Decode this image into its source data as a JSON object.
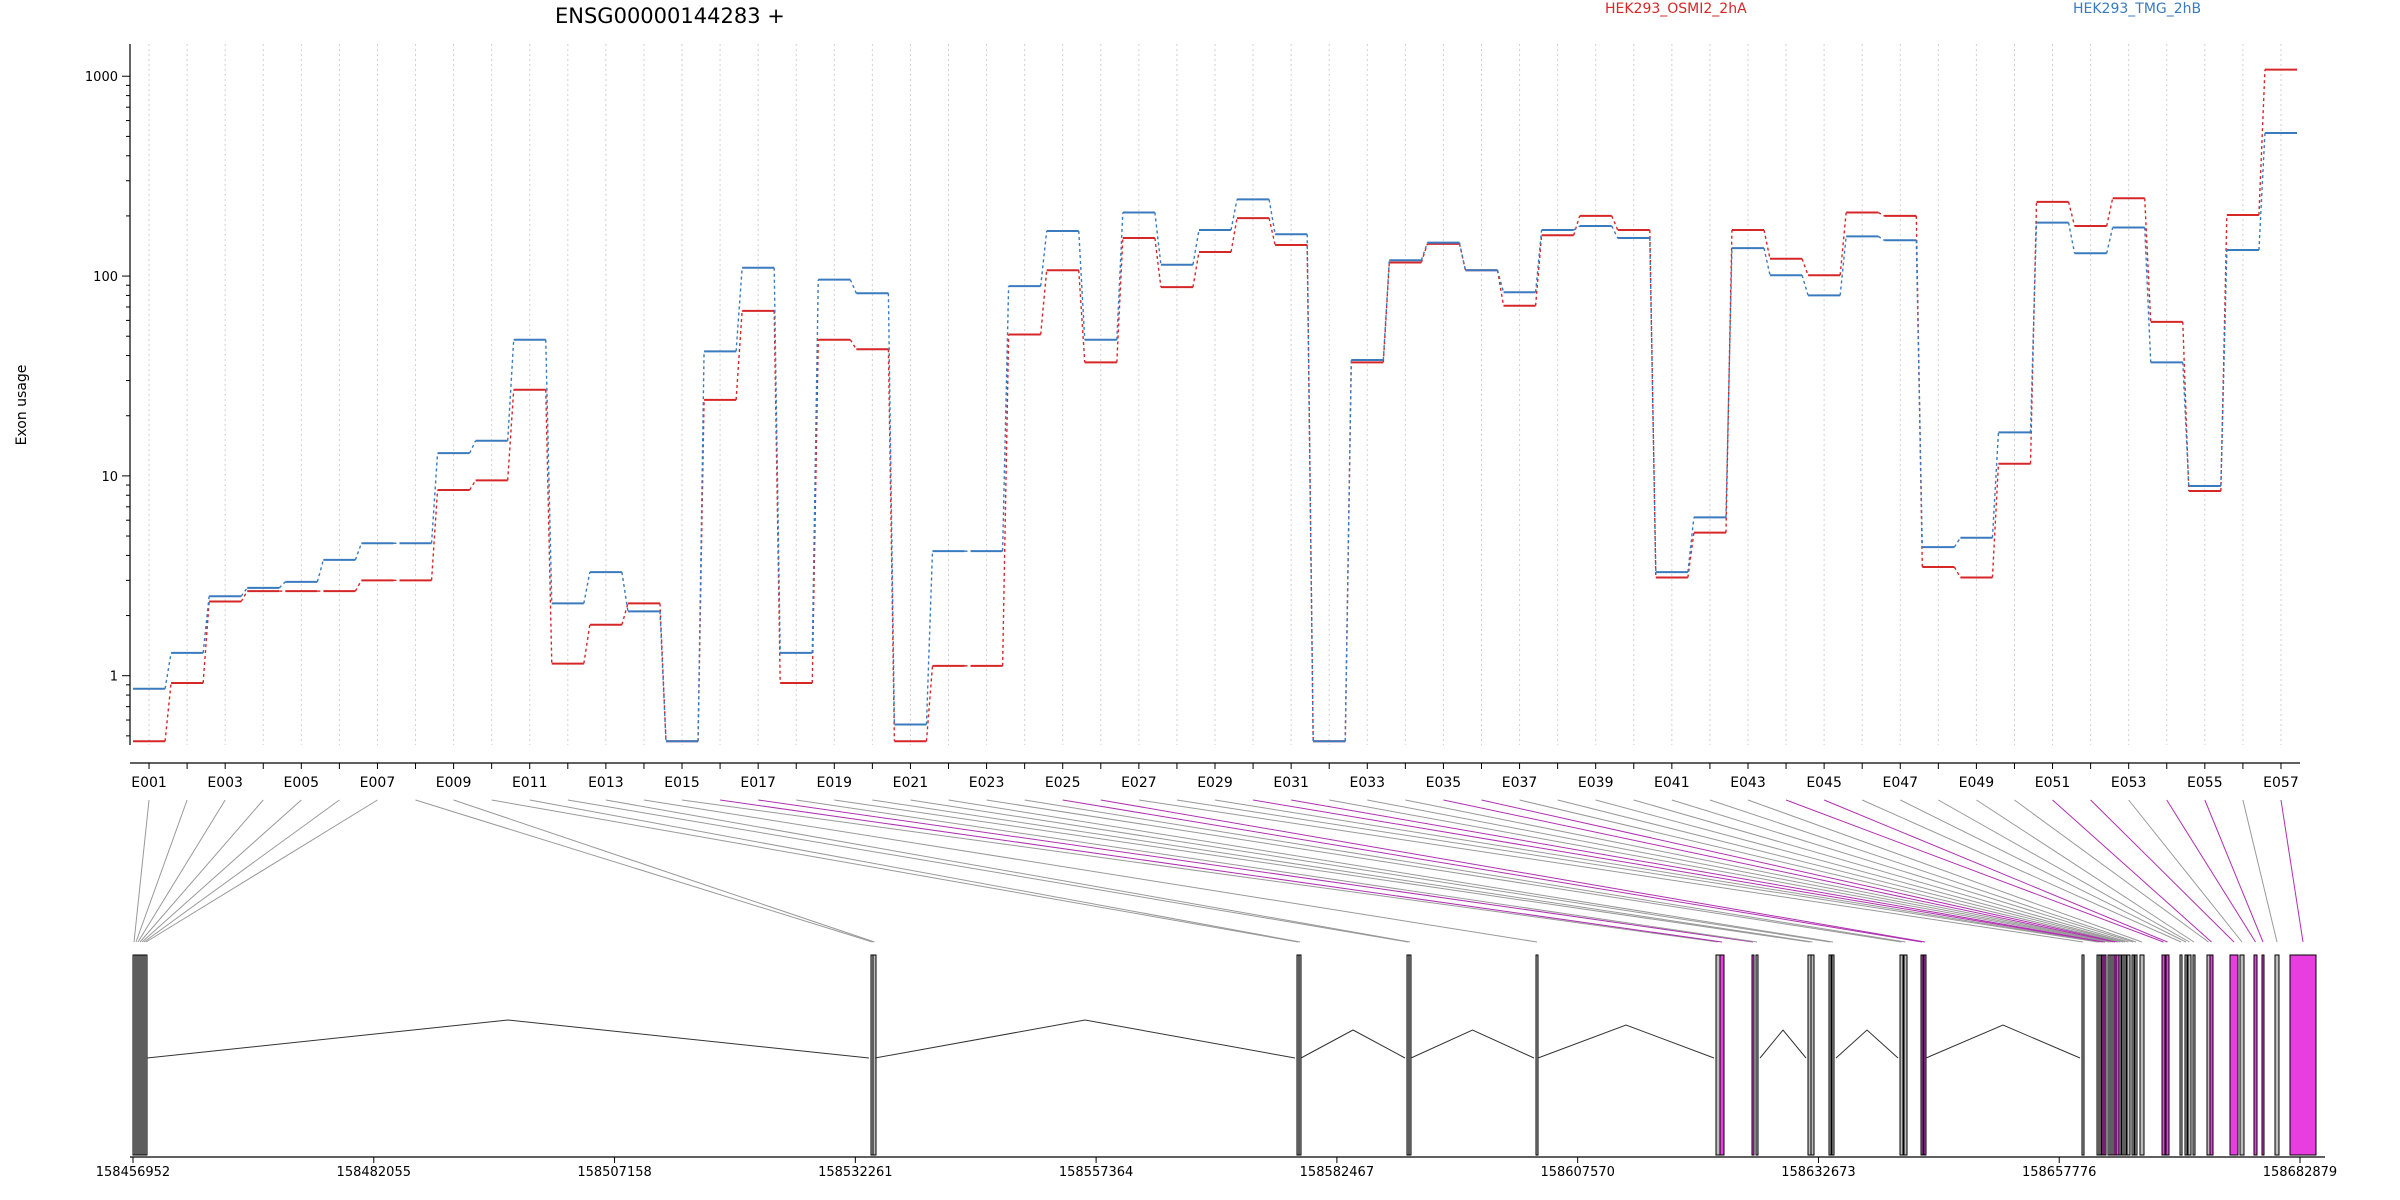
{
  "chart_data": {
    "type": "line",
    "title": "ENSG00000144283 +",
    "ylabel": "Exon usage",
    "xlabel": "",
    "y_scale": "log",
    "ylim": [
      0.45,
      1450
    ],
    "yticks": [
      1,
      10,
      100,
      1000
    ],
    "ytick_labels": [
      "1",
      "10",
      "100",
      "1000"
    ],
    "grid": "vertical-dotted",
    "legend_placement": "top-right",
    "categories": [
      "E001",
      "E002",
      "E003",
      "E004",
      "E005",
      "E006",
      "E007",
      "E008",
      "E009",
      "E010",
      "E011",
      "E012",
      "E013",
      "E014",
      "E015",
      "E016",
      "E017",
      "E018",
      "E019",
      "E020",
      "E021",
      "E022",
      "E023",
      "E024",
      "E025",
      "E026",
      "E027",
      "E028",
      "E029",
      "E030",
      "E031",
      "E032",
      "E033",
      "E034",
      "E035",
      "E036",
      "E037",
      "E038",
      "E039",
      "E040",
      "E041",
      "E042",
      "E043",
      "E044",
      "E045",
      "E046",
      "E047",
      "E048",
      "E049",
      "E050",
      "E051",
      "E052",
      "E053",
      "E054",
      "E055",
      "E056",
      "E057"
    ],
    "xtick_labels": [
      "E001",
      "E003",
      "E005",
      "E007",
      "E009",
      "E011",
      "E013",
      "E015",
      "E017",
      "E019",
      "E021",
      "E023",
      "E025",
      "E027",
      "E029",
      "E031",
      "E033",
      "E035",
      "E037",
      "E039",
      "E041",
      "E043",
      "E045",
      "E047",
      "E049",
      "E051",
      "E053",
      "E055",
      "E057"
    ],
    "series": [
      {
        "name": "HEK293_OSMI2_2hA",
        "color": "#d62728",
        "values": [
          0.47,
          0.92,
          2.35,
          2.65,
          2.65,
          2.65,
          3.0,
          3.0,
          8.5,
          9.5,
          27,
          1.15,
          1.8,
          2.3,
          0.47,
          24,
          67,
          0.92,
          48,
          43,
          0.47,
          1.12,
          1.12,
          51,
          107,
          37,
          155,
          88,
          132,
          195,
          143,
          0.47,
          37,
          117,
          145,
          107,
          71,
          160,
          200,
          170,
          3.1,
          5.2,
          170,
          122,
          101,
          208,
          200,
          3.5,
          3.1,
          11.5,
          235,
          178,
          245,
          59,
          8.4,
          202,
          1080
        ]
      },
      {
        "name": "HEK293_TMG_2hB",
        "color": "#3a7bbf",
        "values": [
          0.86,
          1.3,
          2.5,
          2.75,
          2.95,
          3.8,
          4.6,
          4.6,
          13,
          15,
          48,
          2.3,
          3.3,
          2.1,
          0.47,
          42,
          110,
          1.3,
          96,
          82,
          0.57,
          4.2,
          4.2,
          89,
          168,
          48,
          208,
          114,
          170,
          242,
          162,
          0.47,
          38,
          120,
          147,
          107,
          83,
          170,
          178,
          155,
          3.3,
          6.2,
          138,
          101,
          80,
          158,
          151,
          4.4,
          4.9,
          16.5,
          185,
          130,
          175,
          37,
          8.9,
          135,
          520
        ]
      }
    ]
  },
  "gene_model": {
    "coordinate_labels": [
      "158456952",
      "158482055",
      "158507158",
      "158532261",
      "158557364",
      "158582467",
      "158607570",
      "158632673",
      "158657776",
      "158682879"
    ],
    "exon_colors": {
      "normal": "#bdbdbd",
      "highlight": "#e83ee0"
    },
    "exon_highlight": [
      false,
      false,
      false,
      false,
      false,
      false,
      false,
      false,
      false,
      false,
      false,
      false,
      false,
      false,
      false,
      true,
      true,
      false,
      false,
      false,
      false,
      false,
      false,
      false,
      true,
      true,
      false,
      false,
      false,
      true,
      true,
      false,
      false,
      false,
      true,
      true,
      false,
      false,
      false,
      false,
      false,
      false,
      false,
      true,
      true,
      false,
      false,
      false,
      false,
      false,
      true,
      true,
      false,
      true,
      true,
      false,
      true
    ]
  }
}
